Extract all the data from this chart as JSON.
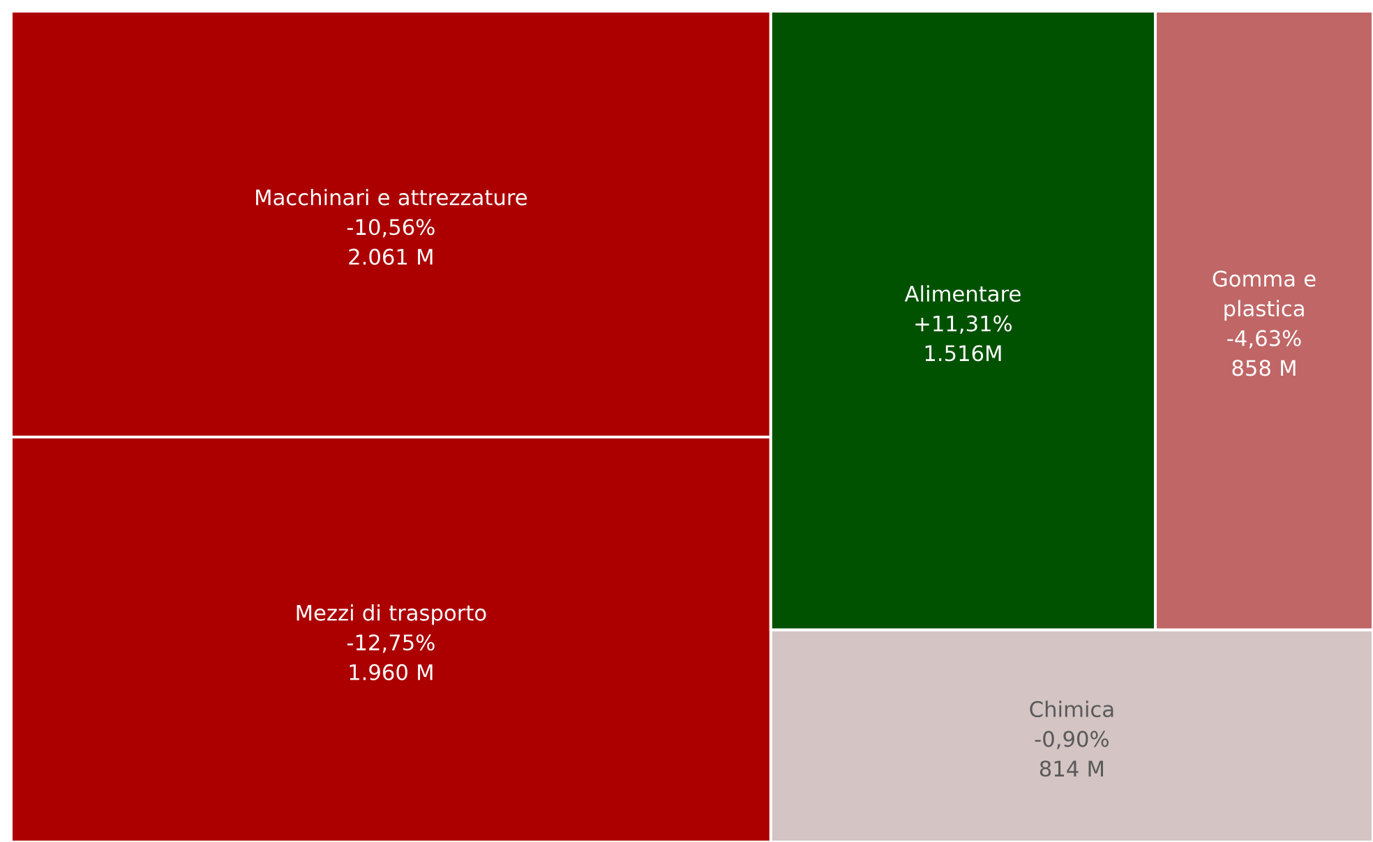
{
  "chart_data": {
    "type": "other",
    "categories": [
      "Macchinari e attrezzature",
      "Mezzi di trasporto",
      "Alimentare",
      "Gomma e plastica",
      "Chimica"
    ],
    "values": [
      2061,
      1960,
      1516,
      858,
      814
    ],
    "value_labels": [
      "2.061 M",
      "1.960 M",
      "1.516M",
      "858 M",
      "814 M"
    ],
    "annotations": [
      "-10,56%",
      "-12,75%",
      "+11,31%",
      "-4,63%",
      "-0,90%"
    ],
    "colors": [
      "#ac0000",
      "#ac0000",
      "#005200",
      "#c06666",
      "#d4c4c4"
    ]
  }
}
